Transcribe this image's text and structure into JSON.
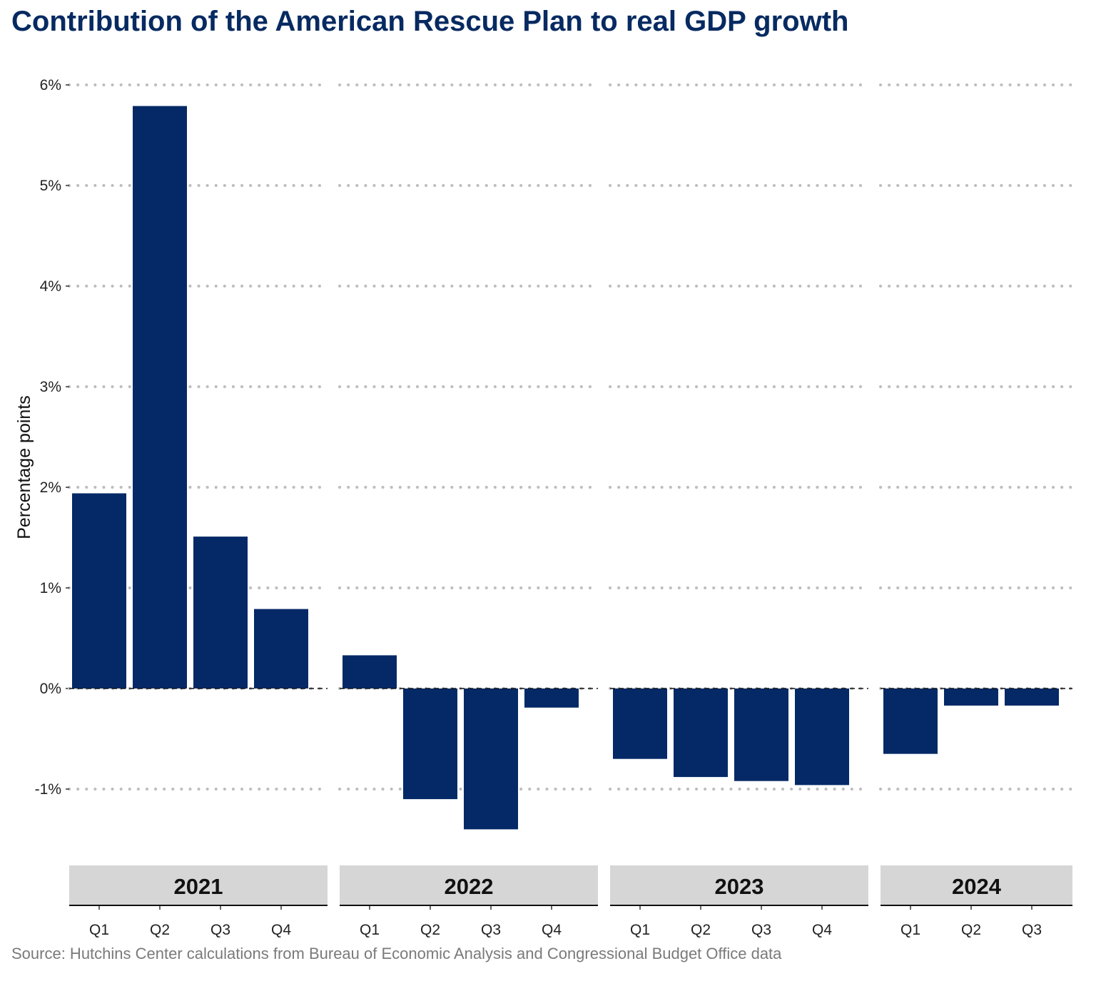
{
  "chart_data": {
    "type": "bar",
    "title": "Contribution of the American Rescue Plan to real GDP growth",
    "ylabel": "Percentage points",
    "source": "Source: Hutchins Center calculations from Bureau of Economic Analysis and Congressional Budget Office data",
    "y_ticks": [
      -1,
      0,
      1,
      2,
      3,
      4,
      5,
      6
    ],
    "y_tick_labels": [
      "-1%",
      "0%",
      "1%",
      "2%",
      "3%",
      "4%",
      "5%",
      "6%"
    ],
    "ylim": [
      -1.6,
      6.1
    ],
    "grid": "horizontal dotted",
    "bar_color": "#042966",
    "panels": [
      {
        "year": "2021",
        "categories": [
          "Q1",
          "Q2",
          "Q3",
          "Q4"
        ],
        "values": [
          1.94,
          5.79,
          1.51,
          0.79
        ]
      },
      {
        "year": "2022",
        "categories": [
          "Q1",
          "Q2",
          "Q3",
          "Q4"
        ],
        "values": [
          0.33,
          -1.1,
          -1.4,
          -0.19
        ]
      },
      {
        "year": "2023",
        "categories": [
          "Q1",
          "Q2",
          "Q3",
          "Q4"
        ],
        "values": [
          -0.7,
          -0.88,
          -0.92,
          -0.96
        ]
      },
      {
        "year": "2024",
        "categories": [
          "Q1",
          "Q2",
          "Q3"
        ],
        "values": [
          -0.65,
          -0.17,
          -0.17
        ]
      }
    ]
  }
}
